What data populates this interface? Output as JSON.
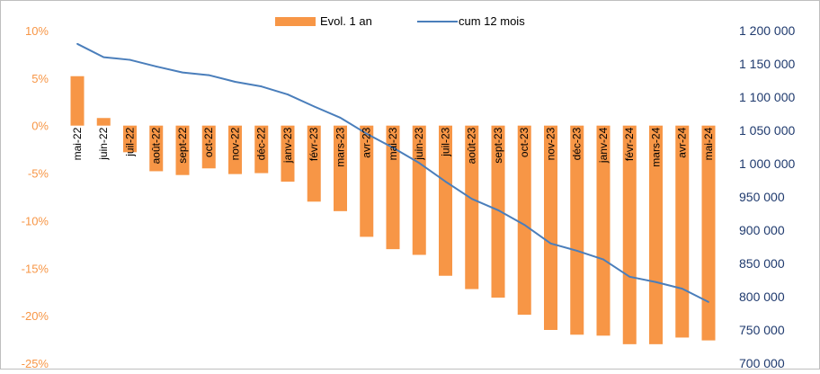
{
  "chart_data": {
    "type": "bar",
    "categories": [
      "mai-22",
      "juin-22",
      "juil-22",
      "août-22",
      "sept-22",
      "oct-22",
      "nov-22",
      "déc-22",
      "janv-23",
      "févr-23",
      "mars-23",
      "avr-23",
      "mai-23",
      "juin-23",
      "juil-23",
      "août-23",
      "sept-23",
      "oct-23",
      "nov-23",
      "déc-23",
      "janv-24",
      "févr-24",
      "mars-24",
      "avr-24",
      "mai-24"
    ],
    "series": [
      {
        "name": "Evol. 1 an",
        "type": "bar",
        "axis": "left",
        "color": "#f79646",
        "values": [
          5.2,
          0.8,
          -2.8,
          -4.8,
          -5.2,
          -4.5,
          -5.1,
          -5.0,
          -5.9,
          -8.0,
          -9.0,
          -11.7,
          -13.0,
          -13.6,
          -15.8,
          -17.2,
          -18.1,
          -19.9,
          -21.5,
          -22.0,
          -22.1,
          -23.0,
          -23.0,
          -22.3,
          -22.6
        ]
      },
      {
        "name": "cum 12 mois",
        "type": "line",
        "axis": "right",
        "color": "#4a7ebb",
        "values": [
          1180000,
          1160000,
          1156000,
          1146000,
          1137000,
          1133000,
          1123000,
          1116000,
          1104000,
          1086000,
          1069000,
          1045000,
          1024000,
          1001000,
          973000,
          947000,
          930000,
          908000,
          880000,
          869000,
          856000,
          830000,
          822000,
          812000,
          792000
        ]
      }
    ],
    "y_left": {
      "ylim": [
        -25,
        10
      ],
      "ticks": [
        10,
        5,
        0,
        -5,
        -10,
        -15,
        -20,
        -25
      ],
      "tick_labels": [
        "10%",
        "5%",
        "0%",
        "-5%",
        "-10%",
        "-15%",
        "-20%",
        "-25%"
      ],
      "color": "#f79646"
    },
    "y_right": {
      "ylim": [
        700000,
        1200000
      ],
      "ticks": [
        1200000,
        1150000,
        1100000,
        1050000,
        1000000,
        950000,
        900000,
        850000,
        800000,
        750000,
        700000
      ],
      "tick_labels": [
        "1 200 000",
        "1 150 000",
        "1 100 000",
        "1 050 000",
        "1 000 000",
        "950 000",
        "900 000",
        "850 000",
        "800 000",
        "750 000",
        "700 000"
      ],
      "color": "#1f3a6e"
    },
    "legend_position": "top-center",
    "grid": false
  }
}
